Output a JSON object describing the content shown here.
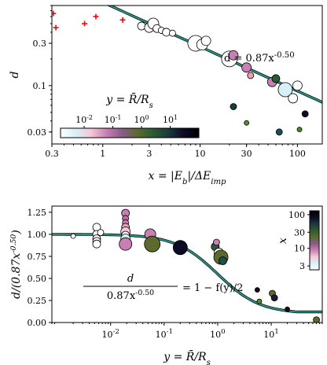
{
  "chart_data": [
    {
      "type": "scatter",
      "xscale": "log",
      "yscale": "log",
      "xlim": [
        0.3,
        180
      ],
      "ylim": [
        0.022,
        0.8
      ],
      "xlabel": "x = |E_b|/ΔE_imp",
      "ylabel": "d",
      "xticks": [
        0.3,
        1,
        3,
        10,
        30,
        100
      ],
      "xtick_labels": [
        "0.3",
        "1",
        "3",
        "10",
        "30",
        "100"
      ],
      "yticks": [
        0.03,
        0.1,
        0.3
      ],
      "ytick_labels": [
        "0.03",
        "0.1",
        "0.3"
      ],
      "annotation": "d = 0.87x^{-0.50}",
      "fit": {
        "a": 0.87,
        "b": -0.5
      },
      "colorbar": {
        "label": "y = R̄/R_s",
        "orientation": "horizontal",
        "ticks": [
          0.01,
          0.1,
          1,
          10
        ],
        "tick_labels": [
          "10^{-2}",
          "10^{-1}",
          "10^{0}",
          "10^{1}"
        ],
        "range": [
          0.0015,
          100
        ]
      },
      "series": [
        {
          "marker": "plus",
          "color": "#ff0000",
          "points": [
            [
              0.31,
              0.65
            ],
            [
              0.33,
              0.45
            ],
            [
              0.65,
              0.5
            ],
            [
              0.85,
              0.6
            ],
            [
              1.6,
              0.55
            ]
          ]
        },
        {
          "marker": "circle",
          "points": [
            {
              "x": 2.5,
              "y": 0.47,
              "c": "#ffffff",
              "s": 5
            },
            {
              "x": 3.0,
              "y": 0.45,
              "c": "#ffffff",
              "s": 6
            },
            {
              "x": 3.3,
              "y": 0.5,
              "c": "#ffffff",
              "s": 7
            },
            {
              "x": 3.6,
              "y": 0.44,
              "c": "#ffffff",
              "s": 5
            },
            {
              "x": 4.0,
              "y": 0.42,
              "c": "#ffffff",
              "s": 4
            },
            {
              "x": 4.5,
              "y": 0.4,
              "c": "#ffffff",
              "s": 5
            },
            {
              "x": 5.2,
              "y": 0.39,
              "c": "#ffffff",
              "s": 4
            },
            {
              "x": 9.0,
              "y": 0.3,
              "c": "#ffffff",
              "s": 10
            },
            {
              "x": 10.5,
              "y": 0.29,
              "c": "#ffffff",
              "s": 7
            },
            {
              "x": 11.5,
              "y": 0.32,
              "c": "#ffffff",
              "s": 6
            },
            {
              "x": 20,
              "y": 0.2,
              "c": "#ffffff",
              "s": 10
            },
            {
              "x": 22,
              "y": 0.22,
              "c": "#c87fb3",
              "s": 6
            },
            {
              "x": 30,
              "y": 0.16,
              "c": "#c87fb3",
              "s": 6
            },
            {
              "x": 33,
              "y": 0.13,
              "c": "#ef9db1",
              "s": 4
            },
            {
              "x": 55,
              "y": 0.11,
              "c": "#c87fb3",
              "s": 6
            },
            {
              "x": 60,
              "y": 0.12,
              "c": "#2b5b34",
              "s": 5
            },
            {
              "x": 75,
              "y": 0.09,
              "c": "#d7f0f7",
              "s": 9
            },
            {
              "x": 90,
              "y": 0.072,
              "c": "#ffffff",
              "s": 6
            },
            {
              "x": 100,
              "y": 0.1,
              "c": "#ffffff",
              "s": 6
            },
            {
              "x": 22,
              "y": 0.058,
              "c": "#173d3d",
              "s": 4
            },
            {
              "x": 30,
              "y": 0.038,
              "c": "#5a8a30",
              "s": 3
            },
            {
              "x": 65,
              "y": 0.03,
              "c": "#1b5050",
              "s": 4
            },
            {
              "x": 105,
              "y": 0.032,
              "c": "#4f8a2a",
              "s": 3
            },
            {
              "x": 120,
              "y": 0.048,
              "c": "#0d0b24",
              "s": 4
            }
          ]
        }
      ]
    },
    {
      "type": "scatter",
      "xscale": "log",
      "yscale": "linear",
      "xlim": [
        0.0008,
        90
      ],
      "ylim": [
        0,
        1.32
      ],
      "xlabel": "y = R̄/R_s",
      "ylabel": "d/(0.87x^{-0.50})",
      "xticks": [
        0.01,
        0.1,
        1,
        10
      ],
      "xtick_labels": [
        "10^{-2}",
        "10^{-1}",
        "10^{0}",
        "10^{1}"
      ],
      "yticks": [
        0.0,
        0.25,
        0.5,
        0.75,
        1.0,
        1.25
      ],
      "ytick_labels": [
        "0.00",
        "0.25",
        "0.50",
        "0.75",
        "1.00",
        "1.25"
      ],
      "annotation_lhs_num": "d",
      "annotation_lhs_den": "0.87x^{-0.50}",
      "annotation_rhs": "= 1 − f(y)/2",
      "colorbar": {
        "label": "x",
        "orientation": "vertical",
        "ticks": [
          3,
          10,
          30,
          100
        ],
        "tick_labels": [
          "3",
          "10",
          "30",
          "100"
        ],
        "range": [
          2.3,
          130
        ]
      },
      "points": [
        {
          "x": 0.002,
          "y": 0.98,
          "c": "#ffffff",
          "s": 3
        },
        {
          "x": 0.0055,
          "y": 1.08,
          "c": "#ffffff",
          "s": 5
        },
        {
          "x": 0.0055,
          "y": 1.0,
          "c": "#ffffff",
          "s": 5
        },
        {
          "x": 0.0055,
          "y": 0.95,
          "c": "#ffffff",
          "s": 5
        },
        {
          "x": 0.0055,
          "y": 0.92,
          "c": "#ffffff",
          "s": 5
        },
        {
          "x": 0.0055,
          "y": 0.89,
          "c": "#ffffff",
          "s": 5
        },
        {
          "x": 0.0065,
          "y": 1.02,
          "c": "#ffffff",
          "s": 4
        },
        {
          "x": 0.019,
          "y": 1.24,
          "c": "#c87fb3",
          "s": 5
        },
        {
          "x": 0.019,
          "y": 1.18,
          "c": "#b86e9a",
          "s": 4
        },
        {
          "x": 0.019,
          "y": 1.13,
          "c": "#c87fb3",
          "s": 4
        },
        {
          "x": 0.019,
          "y": 1.08,
          "c": "#ef9db1",
          "s": 5
        },
        {
          "x": 0.019,
          "y": 1.03,
          "c": "#f6c6d8",
          "s": 6
        },
        {
          "x": 0.019,
          "y": 0.99,
          "c": "#ffffff",
          "s": 5
        },
        {
          "x": 0.019,
          "y": 0.95,
          "c": "#d7f0f7",
          "s": 6
        },
        {
          "x": 0.019,
          "y": 0.89,
          "c": "#c87fb3",
          "s": 8
        },
        {
          "x": 0.055,
          "y": 1.0,
          "c": "#c87fb3",
          "s": 7
        },
        {
          "x": 0.06,
          "y": 0.89,
          "c": "#5c6b2d",
          "s": 10
        },
        {
          "x": 0.2,
          "y": 0.85,
          "c": "#0d0b24",
          "s": 9
        },
        {
          "x": 0.9,
          "y": 0.86,
          "c": "#2b5b34",
          "s": 5
        },
        {
          "x": 0.95,
          "y": 0.91,
          "c": "#c87fb3",
          "s": 4
        },
        {
          "x": 1.05,
          "y": 0.79,
          "c": "#ffffff",
          "s": 6
        },
        {
          "x": 1.15,
          "y": 0.74,
          "c": "#5c6b2d",
          "s": 9
        },
        {
          "x": 1.25,
          "y": 0.7,
          "c": "#1b5050",
          "s": 5
        },
        {
          "x": 5.5,
          "y": 0.37,
          "c": "#0d0b24",
          "s": 3
        },
        {
          "x": 6.0,
          "y": 0.24,
          "c": "#5a8a30",
          "s": 3
        },
        {
          "x": 10.5,
          "y": 0.33,
          "c": "#5c6b2d",
          "s": 4
        },
        {
          "x": 11.5,
          "y": 0.28,
          "c": "#1b1b3a",
          "s": 4
        },
        {
          "x": 20,
          "y": 0.15,
          "c": "#0d0b24",
          "s": 3
        },
        {
          "x": 70,
          "y": 0.03,
          "c": "#5c6b2d",
          "s": 4
        }
      ]
    }
  ],
  "colors": {
    "fit_line": "#2a9a8e",
    "cmap": [
      "#ffffff",
      "#d7f0f7",
      "#f6c6d8",
      "#c87fb3",
      "#8a5a8a",
      "#5c6b2d",
      "#2b5b34",
      "#1b3a3a",
      "#0d0b24",
      "#000000"
    ]
  }
}
